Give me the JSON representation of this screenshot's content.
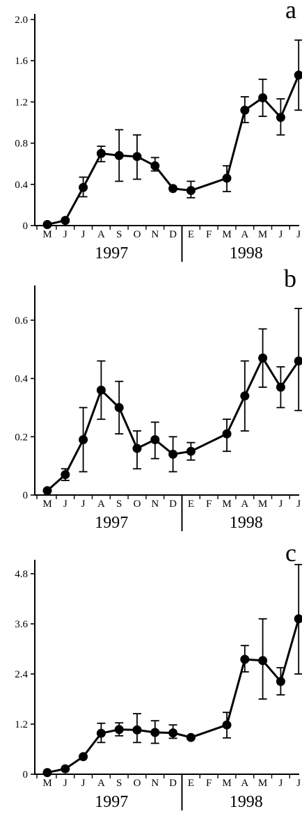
{
  "chart_data": [
    {
      "type": "line",
      "panel_label": "a",
      "categories": [
        "M",
        "J",
        "J",
        "A",
        "S",
        "O",
        "N",
        "D",
        "E",
        "F",
        "M",
        "A",
        "M",
        "J",
        "J"
      ],
      "years": [
        "1997",
        "1998"
      ],
      "ylim": [
        0,
        2.0
      ],
      "yticks": [
        0,
        0.4,
        0.8,
        1.2,
        1.6,
        2.0
      ],
      "ytick_labels": [
        "0",
        "0.4",
        "0.8",
        "1.2",
        "1.6",
        "2.0"
      ],
      "series": [
        {
          "values": [
            0.01,
            0.05,
            0.37,
            0.7,
            0.68,
            0.67,
            0.58,
            0.36,
            0.34,
            null,
            0.46,
            1.12,
            1.24,
            1.05,
            1.46
          ],
          "error_low": [
            null,
            null,
            0.28,
            0.62,
            0.43,
            0.45,
            0.53,
            null,
            0.27,
            null,
            0.33,
            1.0,
            1.06,
            0.88,
            1.12
          ],
          "error_high": [
            null,
            null,
            0.47,
            0.77,
            0.93,
            0.88,
            0.66,
            null,
            0.43,
            null,
            0.58,
            1.25,
            1.42,
            1.23,
            1.8
          ]
        }
      ]
    },
    {
      "type": "line",
      "panel_label": "b",
      "categories": [
        "M",
        "J",
        "J",
        "A",
        "S",
        "O",
        "N",
        "D",
        "E",
        "F",
        "M",
        "A",
        "M",
        "J",
        "J"
      ],
      "years": [
        "1997",
        "1998"
      ],
      "ylim": [
        0,
        0.7
      ],
      "yticks": [
        0,
        0.2,
        0.4,
        0.6
      ],
      "ytick_labels": [
        "0",
        "0.2",
        "0.4",
        "0.6"
      ],
      "series": [
        {
          "values": [
            0.015,
            0.07,
            0.19,
            0.36,
            0.3,
            0.16,
            0.19,
            0.14,
            0.15,
            null,
            0.21,
            0.34,
            0.47,
            0.37,
            0.46
          ],
          "error_low": [
            null,
            0.05,
            0.08,
            0.26,
            0.21,
            0.09,
            0.125,
            0.08,
            0.12,
            null,
            0.15,
            0.22,
            0.37,
            0.3,
            0.29
          ],
          "error_high": [
            null,
            0.09,
            0.3,
            0.46,
            0.39,
            0.22,
            0.25,
            0.2,
            0.18,
            null,
            0.26,
            0.46,
            0.57,
            0.44,
            0.64
          ]
        }
      ]
    },
    {
      "type": "line",
      "panel_label": "c",
      "categories": [
        "M",
        "J",
        "J",
        "A",
        "S",
        "O",
        "N",
        "D",
        "E",
        "F",
        "M",
        "A",
        "M",
        "J",
        "J"
      ],
      "years": [
        "1997",
        "1998"
      ],
      "ylim": [
        0,
        5.0
      ],
      "yticks": [
        0,
        1.2,
        2.4,
        3.6,
        4.8
      ],
      "ytick_labels": [
        "0",
        "1.2",
        "2.4",
        "3.6",
        "4.8"
      ],
      "series": [
        {
          "values": [
            0.04,
            0.13,
            0.42,
            0.98,
            1.07,
            1.06,
            1.0,
            0.99,
            0.88,
            null,
            1.18,
            2.75,
            2.72,
            2.22,
            3.72
          ],
          "error_low": [
            null,
            null,
            null,
            0.76,
            0.92,
            0.76,
            0.74,
            0.86,
            null,
            null,
            0.87,
            2.45,
            1.8,
            1.9,
            2.4
          ],
          "error_high": [
            null,
            null,
            null,
            1.22,
            1.23,
            1.45,
            1.28,
            1.18,
            null,
            null,
            1.48,
            3.08,
            3.72,
            2.55,
            5.02
          ]
        }
      ]
    }
  ]
}
